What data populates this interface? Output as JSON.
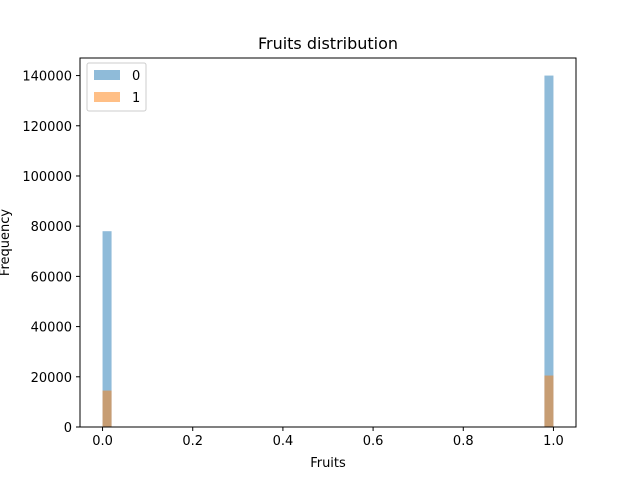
{
  "chart_data": {
    "type": "bar",
    "title": "Fruits distribution",
    "xlabel": "Fruits",
    "ylabel": "Frequency",
    "xlim": [
      -0.05,
      1.05
    ],
    "ylim": [
      0,
      147000
    ],
    "xticks": [
      0.0,
      0.2,
      0.4,
      0.6,
      0.8,
      1.0
    ],
    "xtick_labels": [
      "0.0",
      "0.2",
      "0.4",
      "0.6",
      "0.8",
      "1.0"
    ],
    "yticks": [
      0,
      20000,
      40000,
      60000,
      80000,
      100000,
      120000,
      140000
    ],
    "ytick_labels": [
      "0",
      "20000",
      "40000",
      "60000",
      "80000",
      "100000",
      "120000",
      "140000"
    ],
    "bin_width": 0.02,
    "grid": false,
    "legend_position": "top-left",
    "series": [
      {
        "name": "0",
        "color": "#1f77b4",
        "opacity": 0.5,
        "bins": [
          {
            "x0": 0.0,
            "x1": 0.02,
            "count": 78000
          },
          {
            "x0": 0.98,
            "x1": 1.0,
            "count": 140000
          }
        ]
      },
      {
        "name": "1",
        "color": "#ff7f0e",
        "opacity": 0.5,
        "bins": [
          {
            "x0": 0.0,
            "x1": 0.02,
            "count": 14500
          },
          {
            "x0": 0.98,
            "x1": 1.0,
            "count": 20500
          }
        ]
      }
    ]
  }
}
